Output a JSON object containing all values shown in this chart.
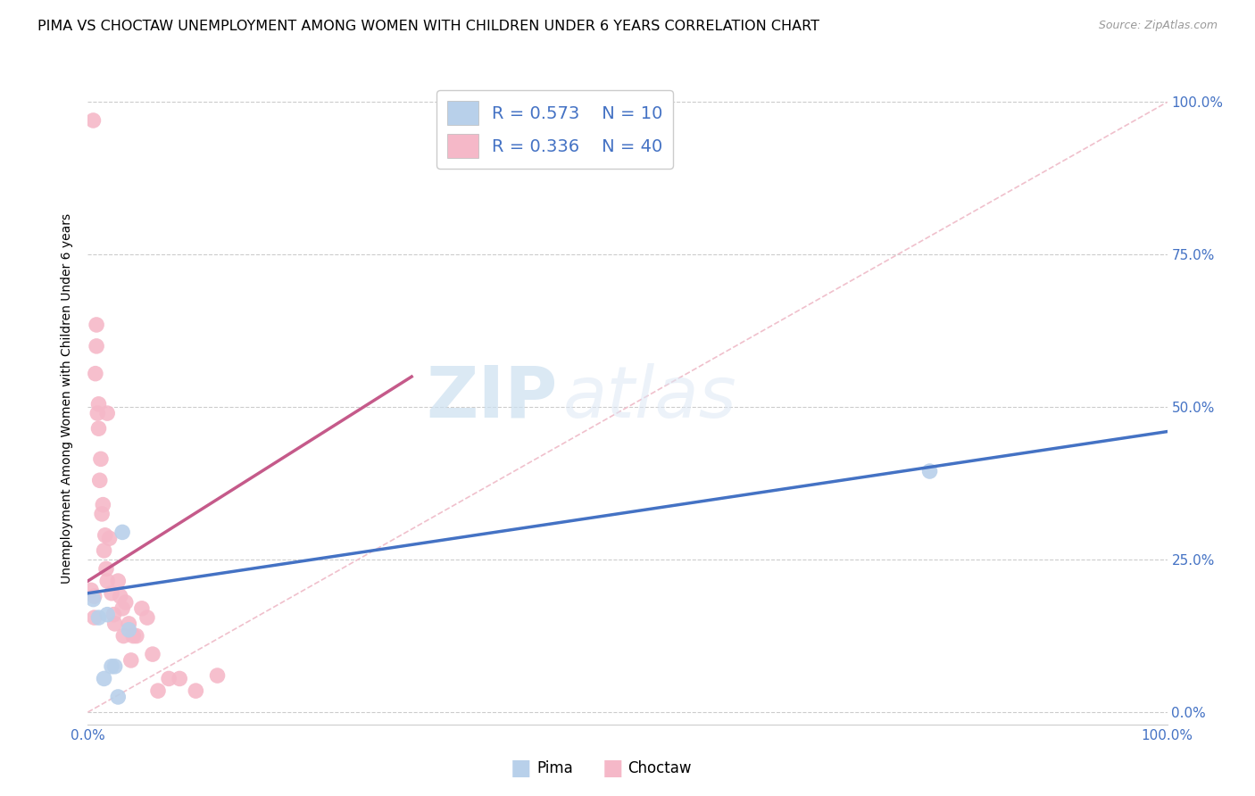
{
  "title": "PIMA VS CHOCTAW UNEMPLOYMENT AMONG WOMEN WITH CHILDREN UNDER 6 YEARS CORRELATION CHART",
  "source": "Source: ZipAtlas.com",
  "ylabel": "Unemployment Among Women with Children Under 6 years",
  "xlim": [
    0,
    1
  ],
  "ylim": [
    -0.02,
    1.05
  ],
  "ytick_positions": [
    0.0,
    0.25,
    0.5,
    0.75,
    1.0
  ],
  "ytick_labels": [
    "0.0%",
    "25.0%",
    "50.0%",
    "75.0%",
    "100.0%"
  ],
  "xtick_positions": [
    0.0,
    1.0
  ],
  "xtick_labels": [
    "0.0%",
    "100.0%"
  ],
  "pima_color": "#b8d0ea",
  "choctaw_color": "#f5b8c8",
  "pima_line_color": "#4472c4",
  "choctaw_line_color": "#c55a8a",
  "diagonal_color": "#f0c0cc",
  "background_color": "#ffffff",
  "grid_color": "#cccccc",
  "watermark_zip": "ZIP",
  "watermark_atlas": "atlas",
  "title_fontsize": 11.5,
  "axis_label_fontsize": 10,
  "tick_fontsize": 11,
  "legend_fontsize": 14,
  "watermark_fontsize_zip": 58,
  "watermark_fontsize_atlas": 58,
  "pima_x": [
    0.005,
    0.01,
    0.015,
    0.018,
    0.022,
    0.025,
    0.028,
    0.032,
    0.038,
    0.78
  ],
  "pima_y": [
    0.185,
    0.155,
    0.055,
    0.16,
    0.075,
    0.075,
    0.025,
    0.295,
    0.135,
    0.395
  ],
  "choctaw_x": [
    0.003,
    0.005,
    0.006,
    0.006,
    0.007,
    0.008,
    0.008,
    0.009,
    0.01,
    0.01,
    0.011,
    0.012,
    0.013,
    0.014,
    0.015,
    0.016,
    0.017,
    0.018,
    0.018,
    0.02,
    0.022,
    0.024,
    0.025,
    0.028,
    0.03,
    0.032,
    0.033,
    0.035,
    0.038,
    0.04,
    0.042,
    0.045,
    0.05,
    0.055,
    0.06,
    0.065,
    0.075,
    0.085,
    0.1,
    0.12
  ],
  "choctaw_y": [
    0.2,
    0.97,
    0.19,
    0.155,
    0.555,
    0.6,
    0.635,
    0.49,
    0.465,
    0.505,
    0.38,
    0.415,
    0.325,
    0.34,
    0.265,
    0.29,
    0.235,
    0.49,
    0.215,
    0.285,
    0.195,
    0.16,
    0.145,
    0.215,
    0.19,
    0.17,
    0.125,
    0.18,
    0.145,
    0.085,
    0.125,
    0.125,
    0.17,
    0.155,
    0.095,
    0.035,
    0.055,
    0.055,
    0.035,
    0.06
  ],
  "choctaw_line_x0": 0.0,
  "choctaw_line_y0": 0.215,
  "choctaw_line_x1": 0.3,
  "choctaw_line_y1": 0.55,
  "pima_line_x0": 0.0,
  "pima_line_y0": 0.195,
  "pima_line_x1": 1.0,
  "pima_line_y1": 0.46
}
